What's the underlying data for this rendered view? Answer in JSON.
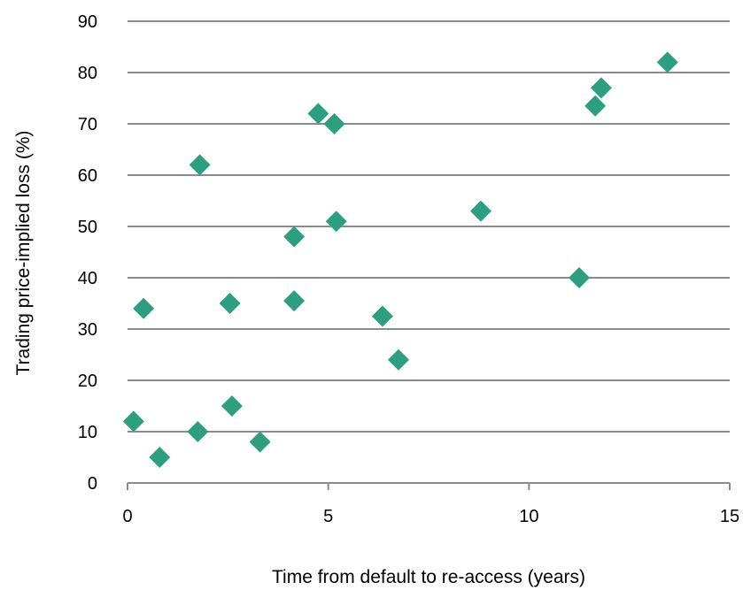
{
  "chart_data": {
    "type": "scatter",
    "title": "",
    "xlabel": "Time from default to re-access (years)",
    "ylabel": "Trading price-implied loss (%)",
    "xlim": [
      0,
      15
    ],
    "ylim": [
      0,
      90
    ],
    "xticks": [
      0,
      5,
      10,
      15
    ],
    "yticks": [
      0,
      10,
      20,
      30,
      40,
      50,
      60,
      70,
      80,
      90
    ],
    "grid": "horizontal",
    "marker": "diamond",
    "marker_color": "#2E9E80",
    "points": [
      {
        "x": 0.15,
        "y": 12
      },
      {
        "x": 0.4,
        "y": 34
      },
      {
        "x": 0.8,
        "y": 5
      },
      {
        "x": 1.75,
        "y": 10
      },
      {
        "x": 1.8,
        "y": 62
      },
      {
        "x": 2.55,
        "y": 35
      },
      {
        "x": 2.6,
        "y": 15
      },
      {
        "x": 3.3,
        "y": 8
      },
      {
        "x": 4.15,
        "y": 48
      },
      {
        "x": 4.15,
        "y": 35.5
      },
      {
        "x": 4.75,
        "y": 72
      },
      {
        "x": 5.15,
        "y": 70
      },
      {
        "x": 5.2,
        "y": 51
      },
      {
        "x": 6.35,
        "y": 32.5
      },
      {
        "x": 6.75,
        "y": 24
      },
      {
        "x": 8.8,
        "y": 53
      },
      {
        "x": 11.25,
        "y": 40
      },
      {
        "x": 11.65,
        "y": 73.5
      },
      {
        "x": 11.8,
        "y": 77
      },
      {
        "x": 13.45,
        "y": 82
      }
    ]
  }
}
